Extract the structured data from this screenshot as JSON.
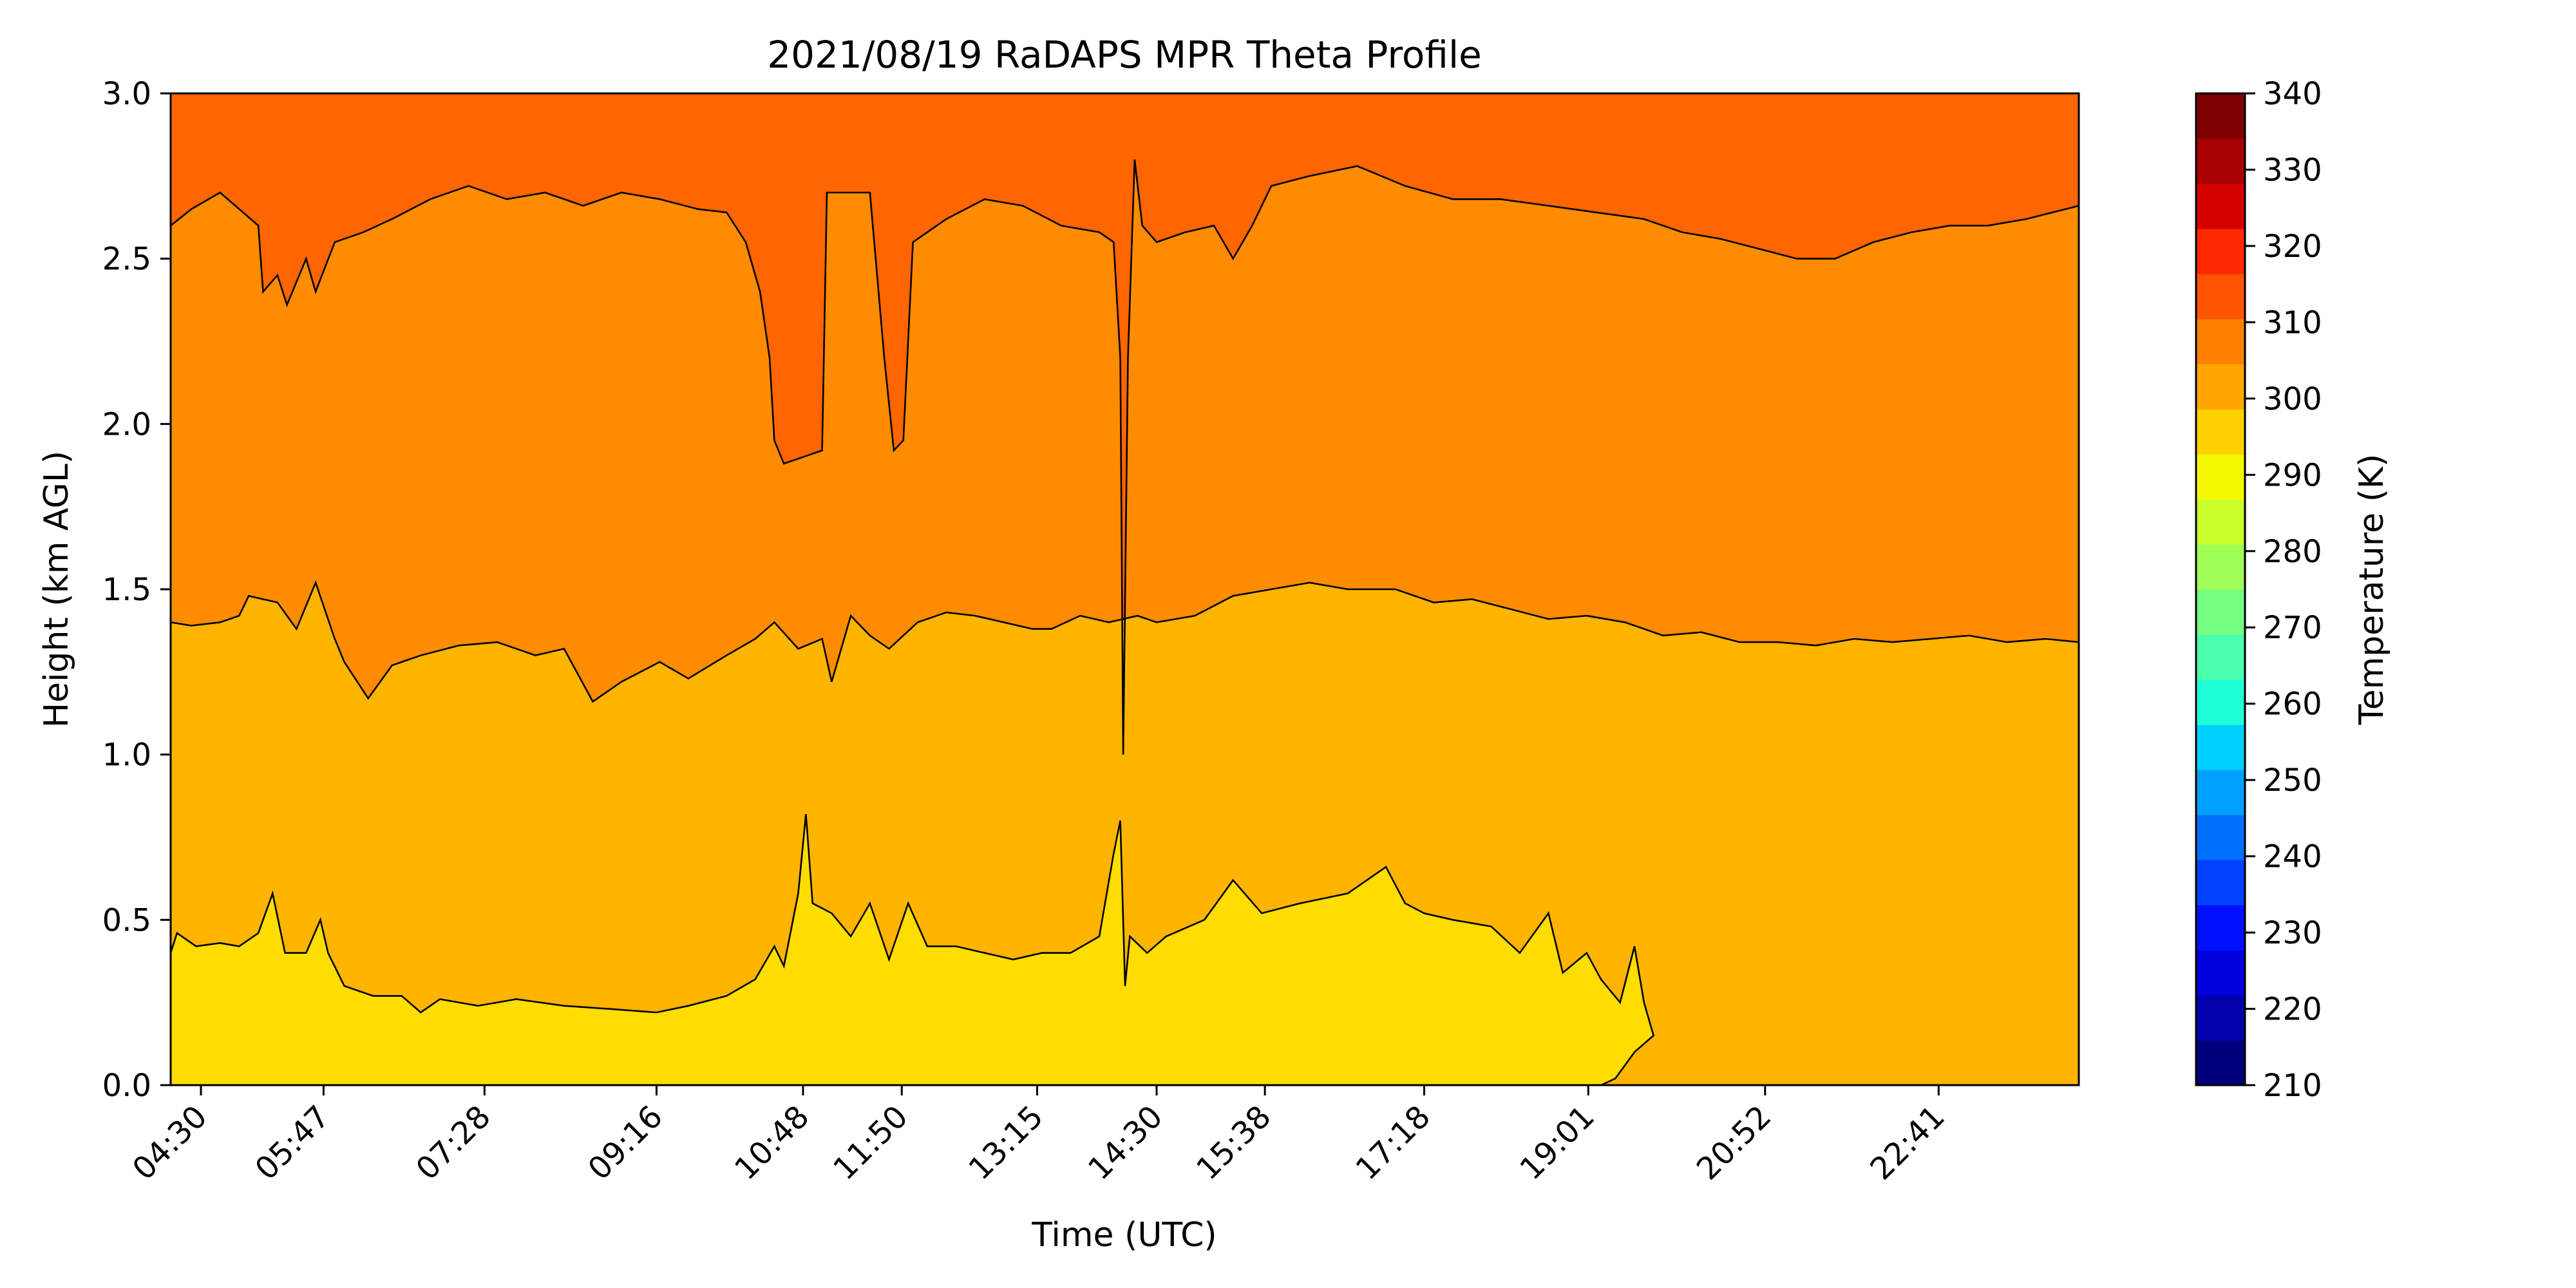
{
  "chart_data": {
    "type": "heatmap",
    "title": "2021/08/19 RaDAPS MPR Theta Profile",
    "xlabel": "Time (UTC)",
    "ylabel": "Height (km AGL)",
    "colorbar_label": "Temperature (K)",
    "x_ticks": [
      "04:30",
      "05:47",
      "07:28",
      "09:16",
      "10:48",
      "11:50",
      "13:15",
      "14:30",
      "15:38",
      "17:18",
      "19:01",
      "20:52",
      "22:41"
    ],
    "x_tick_hours": [
      4.5,
      5.783,
      7.467,
      9.267,
      10.8,
      11.833,
      13.25,
      14.5,
      15.633,
      17.3,
      19.017,
      20.867,
      22.683
    ],
    "x_range_hours": [
      4.183,
      24.15
    ],
    "y_ticks": [
      "0.0",
      "0.5",
      "1.0",
      "1.5",
      "2.0",
      "2.5",
      "3.0"
    ],
    "y_tick_values": [
      0.0,
      0.5,
      1.0,
      1.5,
      2.0,
      2.5,
      3.0
    ],
    "ylim": [
      0.0,
      3.0
    ],
    "colorbar_ticks": [
      "210",
      "220",
      "230",
      "240",
      "250",
      "260",
      "270",
      "280",
      "290",
      "300",
      "310",
      "320",
      "330",
      "340"
    ],
    "colorbar_range": [
      210,
      340
    ],
    "colorbar_colors": [
      "#00007f",
      "#0000ad",
      "#0000dc",
      "#0010ff",
      "#0040ff",
      "#0070ff",
      "#00a0ff",
      "#00d0ff",
      "#1fffd7",
      "#4affad",
      "#75ff81",
      "#a0ff57",
      "#cbff2b",
      "#f5f900",
      "#ffd200",
      "#ffa600",
      "#ff8100",
      "#ff5500",
      "#fe2900",
      "#d70000",
      "#a90000",
      "#7f0000"
    ],
    "band_colors": {
      "290-300": "#ffdd00",
      "300-305": "#ffb400",
      "305-310": "#ff8c00",
      "310-315": "#ff6500"
    },
    "contours": [
      {
        "level": "300 K",
        "points": [
          [
            4.183,
            0.4
          ],
          [
            4.25,
            0.46
          ],
          [
            4.45,
            0.42
          ],
          [
            4.7,
            0.43
          ],
          [
            4.9,
            0.42
          ],
          [
            5.1,
            0.46
          ],
          [
            5.25,
            0.58
          ],
          [
            5.38,
            0.4
          ],
          [
            5.6,
            0.4
          ],
          [
            5.75,
            0.5
          ],
          [
            5.83,
            0.4
          ],
          [
            6.0,
            0.3
          ],
          [
            6.3,
            0.27
          ],
          [
            6.6,
            0.27
          ],
          [
            6.8,
            0.22
          ],
          [
            7.0,
            0.26
          ],
          [
            7.4,
            0.24
          ],
          [
            7.8,
            0.26
          ],
          [
            8.3,
            0.24
          ],
          [
            8.8,
            0.23
          ],
          [
            9.267,
            0.22
          ],
          [
            9.6,
            0.24
          ],
          [
            10.0,
            0.27
          ],
          [
            10.3,
            0.32
          ],
          [
            10.5,
            0.42
          ],
          [
            10.6,
            0.36
          ],
          [
            10.75,
            0.58
          ],
          [
            10.83,
            0.82
          ],
          [
            10.9,
            0.55
          ],
          [
            11.1,
            0.52
          ],
          [
            11.3,
            0.45
          ],
          [
            11.5,
            0.55
          ],
          [
            11.7,
            0.38
          ],
          [
            11.9,
            0.55
          ],
          [
            12.1,
            0.42
          ],
          [
            12.4,
            0.42
          ],
          [
            12.7,
            0.4
          ],
          [
            13.0,
            0.38
          ],
          [
            13.3,
            0.4
          ],
          [
            13.6,
            0.4
          ],
          [
            13.9,
            0.45
          ],
          [
            14.05,
            0.7
          ],
          [
            14.12,
            0.8
          ],
          [
            14.17,
            0.3
          ],
          [
            14.22,
            0.45
          ],
          [
            14.4,
            0.4
          ],
          [
            14.6,
            0.45
          ],
          [
            15.0,
            0.5
          ],
          [
            15.3,
            0.62
          ],
          [
            15.6,
            0.52
          ],
          [
            16.0,
            0.55
          ],
          [
            16.5,
            0.58
          ],
          [
            16.9,
            0.66
          ],
          [
            17.1,
            0.55
          ],
          [
            17.3,
            0.52
          ],
          [
            17.6,
            0.5
          ],
          [
            18.0,
            0.48
          ],
          [
            18.3,
            0.4
          ],
          [
            18.6,
            0.52
          ],
          [
            18.75,
            0.34
          ],
          [
            19.0,
            0.4
          ],
          [
            19.15,
            0.32
          ],
          [
            19.35,
            0.25
          ],
          [
            19.5,
            0.42
          ],
          [
            19.6,
            0.25
          ],
          [
            19.7,
            0.15
          ],
          [
            19.5,
            0.1
          ],
          [
            19.3,
            0.02
          ],
          [
            19.15,
            0.0
          ]
        ]
      },
      {
        "level": "305 K",
        "points": [
          [
            4.183,
            1.4
          ],
          [
            4.4,
            1.39
          ],
          [
            4.7,
            1.4
          ],
          [
            4.9,
            1.42
          ],
          [
            5.0,
            1.48
          ],
          [
            5.3,
            1.46
          ],
          [
            5.5,
            1.38
          ],
          [
            5.7,
            1.52
          ],
          [
            5.9,
            1.35
          ],
          [
            6.0,
            1.28
          ],
          [
            6.25,
            1.17
          ],
          [
            6.5,
            1.27
          ],
          [
            6.8,
            1.3
          ],
          [
            7.2,
            1.33
          ],
          [
            7.6,
            1.34
          ],
          [
            8.0,
            1.3
          ],
          [
            8.3,
            1.32
          ],
          [
            8.6,
            1.16
          ],
          [
            8.9,
            1.22
          ],
          [
            9.3,
            1.28
          ],
          [
            9.6,
            1.23
          ],
          [
            10.0,
            1.3
          ],
          [
            10.3,
            1.35
          ],
          [
            10.5,
            1.4
          ],
          [
            10.75,
            1.32
          ],
          [
            11.0,
            1.35
          ],
          [
            11.1,
            1.22
          ],
          [
            11.3,
            1.42
          ],
          [
            11.5,
            1.36
          ],
          [
            11.7,
            1.32
          ],
          [
            12.0,
            1.4
          ],
          [
            12.3,
            1.43
          ],
          [
            12.6,
            1.42
          ],
          [
            12.9,
            1.4
          ],
          [
            13.2,
            1.38
          ],
          [
            13.4,
            1.38
          ],
          [
            13.7,
            1.42
          ],
          [
            14.0,
            1.4
          ],
          [
            14.3,
            1.42
          ],
          [
            14.5,
            1.4
          ],
          [
            14.9,
            1.42
          ],
          [
            15.3,
            1.48
          ],
          [
            15.7,
            1.5
          ],
          [
            16.1,
            1.52
          ],
          [
            16.5,
            1.5
          ],
          [
            17.0,
            1.5
          ],
          [
            17.4,
            1.46
          ],
          [
            17.8,
            1.47
          ],
          [
            18.2,
            1.44
          ],
          [
            18.6,
            1.41
          ],
          [
            19.0,
            1.42
          ],
          [
            19.4,
            1.4
          ],
          [
            19.8,
            1.36
          ],
          [
            20.2,
            1.37
          ],
          [
            20.6,
            1.34
          ],
          [
            21.0,
            1.34
          ],
          [
            21.4,
            1.33
          ],
          [
            21.8,
            1.35
          ],
          [
            22.2,
            1.34
          ],
          [
            22.6,
            1.35
          ],
          [
            23.0,
            1.36
          ],
          [
            23.4,
            1.34
          ],
          [
            23.8,
            1.35
          ],
          [
            24.15,
            1.34
          ]
        ]
      },
      {
        "level": "310 K",
        "points": [
          [
            4.183,
            2.6
          ],
          [
            4.4,
            2.65
          ],
          [
            4.7,
            2.7
          ],
          [
            4.9,
            2.65
          ],
          [
            5.1,
            2.6
          ],
          [
            5.15,
            2.4
          ],
          [
            5.3,
            2.45
          ],
          [
            5.4,
            2.36
          ],
          [
            5.6,
            2.5
          ],
          [
            5.7,
            2.4
          ],
          [
            5.9,
            2.55
          ],
          [
            6.2,
            2.58
          ],
          [
            6.5,
            2.62
          ],
          [
            6.9,
            2.68
          ],
          [
            7.3,
            2.72
          ],
          [
            7.7,
            2.68
          ],
          [
            8.1,
            2.7
          ],
          [
            8.5,
            2.66
          ],
          [
            8.9,
            2.7
          ],
          [
            9.3,
            2.68
          ],
          [
            9.7,
            2.65
          ],
          [
            10.0,
            2.64
          ],
          [
            10.2,
            2.55
          ],
          [
            10.35,
            2.4
          ],
          [
            10.45,
            2.2
          ],
          [
            10.5,
            1.95
          ],
          [
            10.6,
            1.88
          ],
          [
            10.8,
            1.9
          ],
          [
            11.0,
            1.92
          ],
          [
            11.05,
            2.7
          ],
          [
            11.5,
            2.7
          ],
          [
            11.65,
            2.2
          ],
          [
            11.75,
            1.92
          ],
          [
            11.85,
            1.95
          ],
          [
            11.95,
            2.55
          ],
          [
            12.3,
            2.62
          ],
          [
            12.7,
            2.68
          ],
          [
            13.1,
            2.66
          ],
          [
            13.5,
            2.6
          ],
          [
            13.9,
            2.58
          ],
          [
            14.05,
            2.55
          ],
          [
            14.12,
            2.2
          ],
          [
            14.15,
            1.0
          ],
          [
            14.2,
            2.2
          ],
          [
            14.27,
            2.8
          ],
          [
            14.35,
            2.6
          ],
          [
            14.5,
            2.55
          ],
          [
            14.8,
            2.58
          ],
          [
            15.1,
            2.6
          ],
          [
            15.3,
            2.5
          ],
          [
            15.5,
            2.6
          ],
          [
            15.7,
            2.72
          ],
          [
            16.1,
            2.75
          ],
          [
            16.6,
            2.78
          ],
          [
            17.1,
            2.72
          ],
          [
            17.6,
            2.68
          ],
          [
            18.1,
            2.68
          ],
          [
            18.6,
            2.66
          ],
          [
            19.1,
            2.64
          ],
          [
            19.6,
            2.62
          ],
          [
            20.0,
            2.58
          ],
          [
            20.4,
            2.56
          ],
          [
            20.8,
            2.53
          ],
          [
            21.2,
            2.5
          ],
          [
            21.6,
            2.5
          ],
          [
            22.0,
            2.55
          ],
          [
            22.4,
            2.58
          ],
          [
            22.8,
            2.6
          ],
          [
            23.2,
            2.6
          ],
          [
            23.6,
            2.62
          ],
          [
            24.15,
            2.66
          ]
        ]
      }
    ],
    "upper_band_intrusions": [
      {
        "x": [
          10.3,
          11.0
        ],
        "bottom_km": 1.88
      },
      {
        "x": [
          11.6,
          11.95
        ],
        "bottom_km": 1.9
      },
      {
        "x": [
          14.08,
          14.32
        ],
        "bottom_km": 1.0
      }
    ],
    "grid": false
  }
}
